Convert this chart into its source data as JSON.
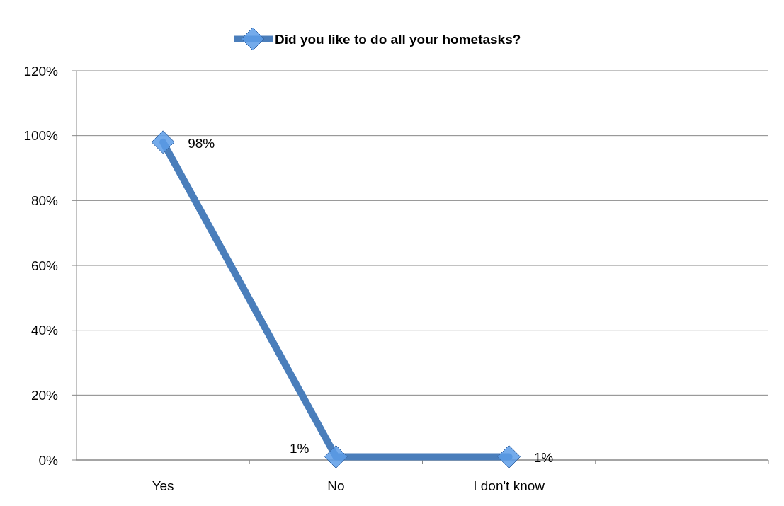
{
  "chart_data": {
    "type": "line",
    "categories": [
      "Yes",
      "No",
      "I don't know",
      null
    ],
    "series": [
      {
        "name": "Did you like to do all your hometasks?",
        "color": "#4a7ebb",
        "values": [
          98,
          1,
          1,
          null
        ],
        "value_labels": [
          "98%",
          "1%",
          "1%",
          null
        ]
      }
    ],
    "ylim": [
      0,
      120
    ],
    "yticks": [
      {
        "value": 0,
        "label": "0%"
      },
      {
        "value": 20,
        "label": "20%"
      },
      {
        "value": 40,
        "label": "40%"
      },
      {
        "value": 60,
        "label": "60%"
      },
      {
        "value": 80,
        "label": "80%"
      },
      {
        "value": 100,
        "label": "100%"
      },
      {
        "value": 120,
        "label": "120%"
      }
    ],
    "grid": "y",
    "legend": "top",
    "marker": "diamond",
    "line_style": "solid"
  }
}
